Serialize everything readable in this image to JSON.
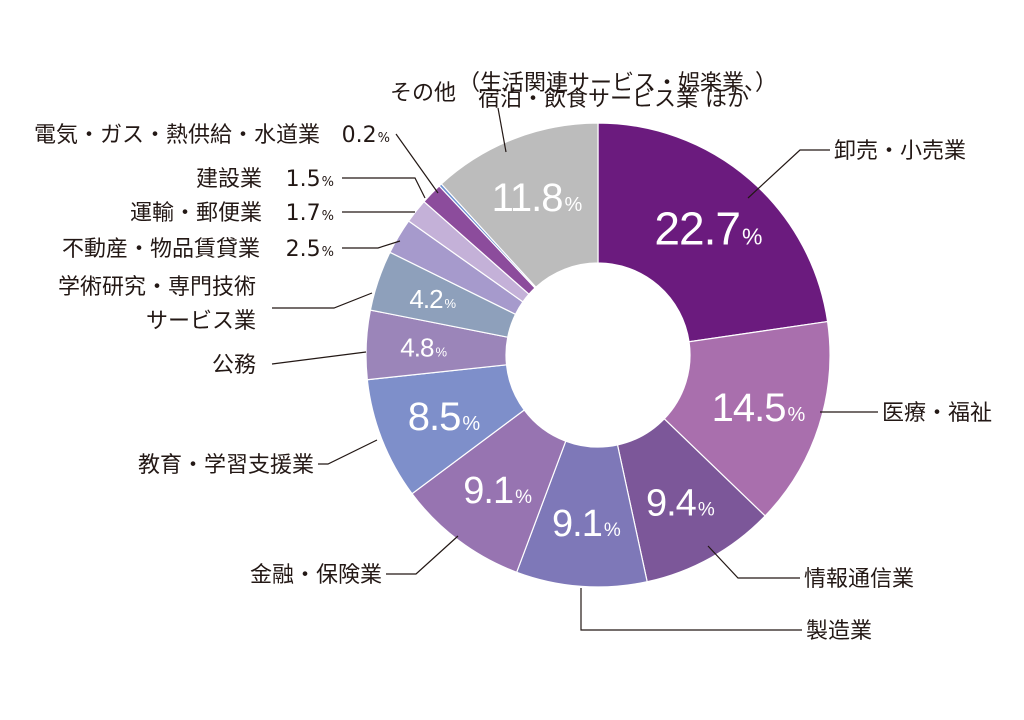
{
  "chart_data": {
    "type": "donut",
    "title": "",
    "unit": "%",
    "segments": [
      {
        "label": "卸売・小売業",
        "value": 22.7,
        "display": "22.7",
        "color": "#6b1b7e"
      },
      {
        "label": "医療・福祉",
        "value": 14.5,
        "display": "14.5",
        "color": "#a96fad"
      },
      {
        "label": "情報通信業",
        "value": 9.4,
        "display": "9.4",
        "color": "#7c5799"
      },
      {
        "label": "製造業",
        "value": 9.1,
        "display": "9.1",
        "color": "#7e78b8"
      },
      {
        "label": "金融・保険業",
        "value": 9.1,
        "display": "9.1",
        "color": "#9774b1"
      },
      {
        "label": "教育・学習支援業",
        "value": 8.5,
        "display": "8.5",
        "color": "#7e8fca"
      },
      {
        "label": "公務",
        "value": 4.8,
        "display": "4.8",
        "color": "#9b85b9"
      },
      {
        "label": "学術研究・専門技術サービス業",
        "label_lines": [
          "学術研究・専門技術",
          "サービス業"
        ],
        "value": 4.2,
        "display": "4.2",
        "color": "#8ea0bb"
      },
      {
        "label": "不動産・物品賃貸業",
        "value": 2.5,
        "display": "2.5",
        "color": "#a69acc"
      },
      {
        "label": "運輸・郵便業",
        "value": 1.7,
        "display": "1.7",
        "color": "#c4b1d8"
      },
      {
        "label": "建設業",
        "value": 1.5,
        "display": "1.5",
        "color": "#8c4c9c"
      },
      {
        "label": "電気・ガス・熱供給・水道業",
        "value": 0.2,
        "display": "0.2",
        "color": "#6a8fd0"
      },
      {
        "label": "その他",
        "sublabel_lines": [
          "（生活関連サービス・娯楽業、）",
          "宿泊・飲食サービス業 ほか"
        ],
        "value": 11.8,
        "display": "11.8",
        "color": "#bcbcbc"
      }
    ]
  }
}
